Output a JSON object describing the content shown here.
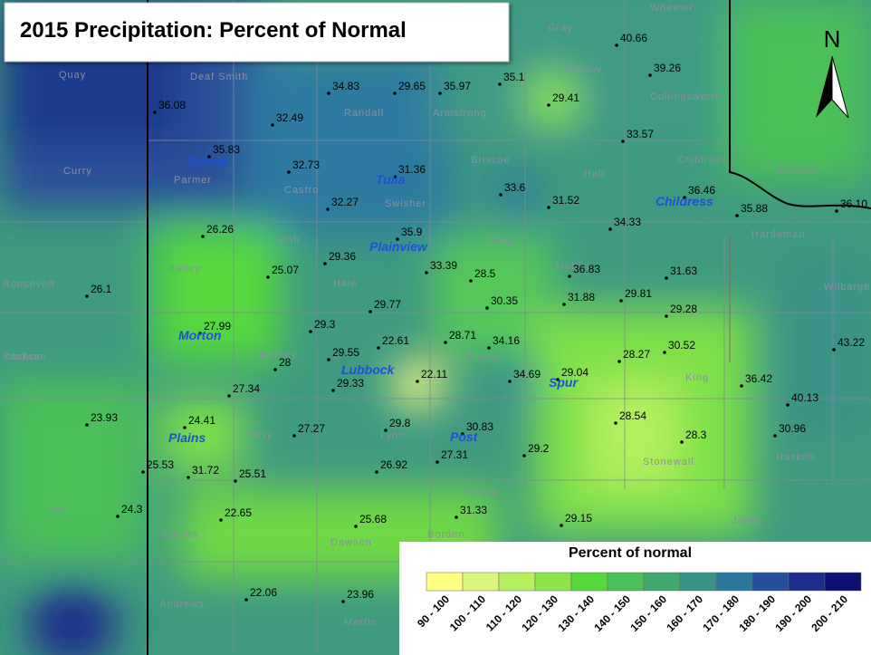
{
  "title": "2015 Precipitation: Percent of Normal",
  "north_label": "N",
  "stations": [
    "36.08",
    "34.83",
    "29.65",
    "35.97",
    "35.1",
    "40.66",
    "39.26",
    "29.41",
    "32.49",
    "33.57",
    "35.83",
    "32.73",
    "31.36",
    "33.6",
    "31.52",
    "36.46",
    "35.88",
    "36.10",
    "32.27",
    "34.33",
    "26.26",
    "35.9",
    "29.36",
    "33.39",
    "28.5",
    "25.07",
    "36.83",
    "31.63",
    "26.1",
    "29.77",
    "30.35",
    "31.88",
    "29.81",
    "29.28",
    "27.99",
    "29.3",
    "22.61",
    "28.71",
    "34.16",
    "43.22",
    "29.55",
    "28",
    "28.27",
    "30.52",
    "22.11",
    "34.69",
    "29.04",
    "29.33",
    "27.34",
    "36.42",
    "40.13",
    "23.93",
    "24.41",
    "28.54",
    "29.8",
    "30.83",
    "27.27",
    "28.3",
    "30.96",
    "29.2",
    "27.31",
    "25.53",
    "31.72",
    "26.92",
    "25.51",
    "24.3",
    "31.33",
    "22.65",
    "29.15",
    "25.68",
    "22.06",
    "23.96"
  ],
  "cities": [
    "Friona",
    "Tulia",
    "Childress",
    "Plainview",
    "Morton",
    "Lubbock",
    "Spur",
    "Plains",
    "Post"
  ],
  "counties": [
    "Quay",
    "Deaf Smith",
    "Randall",
    "Armstrong",
    "Gray",
    "Wheeler",
    "Donley",
    "Collingsworth",
    "Curry",
    "Parmer",
    "Castro",
    "Swisher",
    "Briscoe",
    "Hall",
    "Childress",
    "Roosevelt",
    "Bailey",
    "Lamb",
    "Hale",
    "Floyd",
    "Motley",
    "Cochran",
    "Hockley",
    "Crosby",
    "King",
    "Yoakum",
    "Terry",
    "Lynn",
    "Garza",
    "Stonewall",
    "Haskell",
    "Lea",
    "Gaines",
    "Dawson",
    "Borden",
    "Jones",
    "Andrews",
    "Martin",
    "Hardeman",
    "Jackson",
    "Wilbarger"
  ],
  "legend": {
    "title": "Percent of normal",
    "classes": [
      {
        "label": "90 - 100",
        "color": "#ffff80"
      },
      {
        "label": "100 - 110",
        "color": "#d9f57a"
      },
      {
        "label": "110 - 120",
        "color": "#b3ef5e"
      },
      {
        "label": "120 - 130",
        "color": "#8ce64a"
      },
      {
        "label": "130 - 140",
        "color": "#55d93c"
      },
      {
        "label": "140 - 150",
        "color": "#4cbf59"
      },
      {
        "label": "150 - 160",
        "color": "#43a86e"
      },
      {
        "label": "160 - 170",
        "color": "#3a9386"
      },
      {
        "label": "170 - 180",
        "color": "#2e78a0"
      },
      {
        "label": "180 - 190",
        "color": "#264f99"
      },
      {
        "label": "190 - 200",
        "color": "#1c2d8c"
      },
      {
        "label": "200 - 210",
        "color": "#0d0f73"
      }
    ]
  }
}
